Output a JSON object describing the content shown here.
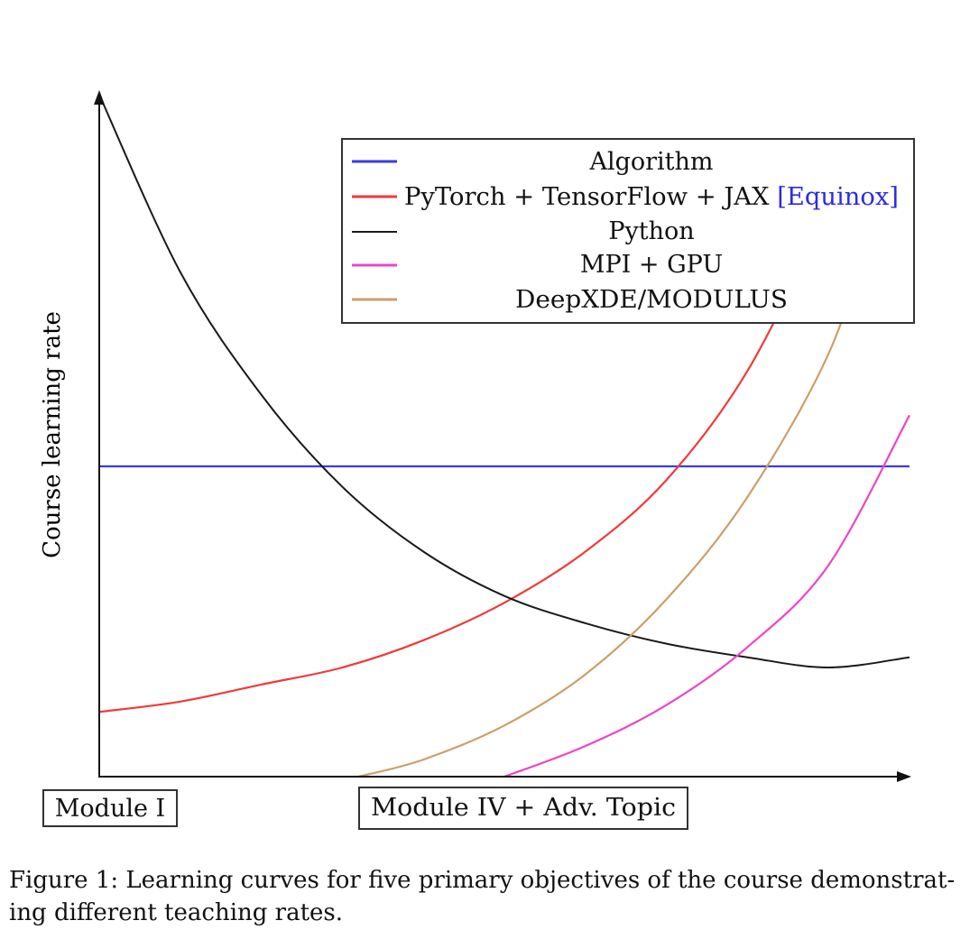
{
  "chart_data": {
    "type": "line",
    "ylabel": "Course learning rate",
    "xlabel": "",
    "title": "",
    "axis_labels": {
      "show_numeric_ticks": false
    },
    "x_tick_labels": [
      "Module I",
      "Module IV + Adv.  Topic"
    ],
    "xlim": [
      0,
      10
    ],
    "ylim": [
      0,
      10
    ],
    "legend": {
      "placement": "top-right",
      "entries": [
        {
          "series": "algorithm",
          "text": "Algorithm"
        },
        {
          "series": "pytorch",
          "text": "PyTorch + TensorFlow + JAX",
          "suffix": "[Equinox]"
        },
        {
          "series": "python",
          "text": "Python"
        },
        {
          "series": "mpi",
          "text": "MPI + GPU"
        },
        {
          "series": "deepxde",
          "text": "DeepXDE/MODULUS"
        }
      ]
    },
    "series": [
      {
        "id": "algorithm",
        "name": "Algorithm",
        "color": "#3a3ae8",
        "x": [
          0,
          10
        ],
        "y": [
          4.55,
          4.55
        ]
      },
      {
        "id": "pytorch",
        "name": "PyTorch + TensorFlow + JAX [Equinox]",
        "color": "#f03a3a",
        "x": [
          0,
          1,
          2,
          3,
          4,
          5,
          6,
          7,
          8,
          9
        ],
        "y": [
          0.95,
          1.1,
          1.35,
          1.6,
          2.0,
          2.55,
          3.3,
          4.35,
          5.95,
          8.3
        ]
      },
      {
        "id": "python",
        "name": "Python",
        "color": "#1a1a1a",
        "x": [
          0,
          1,
          2,
          3,
          4,
          5,
          6,
          7,
          8,
          9,
          10
        ],
        "y": [
          10.0,
          7.4,
          5.6,
          4.25,
          3.3,
          2.65,
          2.25,
          1.95,
          1.75,
          1.6,
          1.75
        ]
      },
      {
        "id": "mpi",
        "name": "MPI + GPU",
        "color": "#ee45c8",
        "x": [
          5,
          6,
          7,
          8,
          9,
          10
        ],
        "y": [
          0.0,
          0.45,
          1.05,
          1.9,
          3.1,
          5.3
        ]
      },
      {
        "id": "deepxde",
        "name": "DeepXDE/MODULUS",
        "color": "#c9a06a",
        "x": [
          3.2,
          4,
          5,
          6,
          7,
          8,
          9,
          9.6
        ],
        "y": [
          0.0,
          0.25,
          0.75,
          1.5,
          2.6,
          4.1,
          6.2,
          8.3
        ]
      }
    ]
  },
  "caption": {
    "text": "Figure 1:  Learning curves for five primary objectives of the course demonstrat-ing different teaching rates."
  }
}
